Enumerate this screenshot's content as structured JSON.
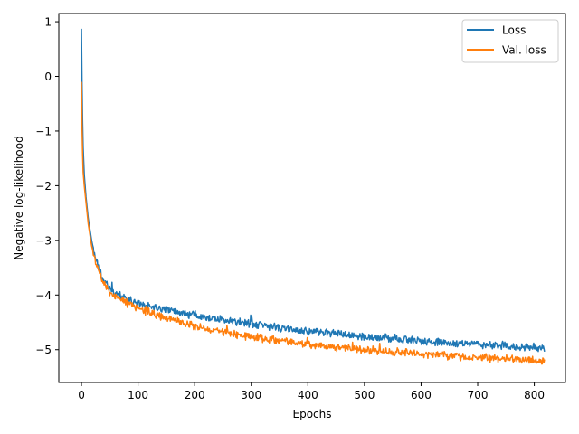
{
  "chart_data": {
    "type": "line",
    "xlabel": "Epochs",
    "ylabel": "Negative log-likelihood",
    "xlim": [
      -40,
      855
    ],
    "ylim": [
      -5.6,
      1.15
    ],
    "xticks": [
      0,
      100,
      200,
      300,
      400,
      500,
      600,
      700,
      800
    ],
    "xtick_labels": [
      "0",
      "100",
      "200",
      "300",
      "400",
      "500",
      "600",
      "700",
      "800"
    ],
    "yticks": [
      1,
      0,
      -1,
      -2,
      -3,
      -4,
      -5
    ],
    "ytick_labels": [
      "1",
      "0",
      "−1",
      "−2",
      "−3",
      "−4",
      "−5"
    ],
    "grid": false,
    "legend_position": "top-right",
    "n_epochs": 819,
    "series": [
      {
        "name": "Loss",
        "color": "#1f77b4",
        "noise": 0.06,
        "curve": [
          [
            0,
            0.87
          ],
          [
            1,
            -0.1
          ],
          [
            2,
            -0.8
          ],
          [
            3,
            -1.3
          ],
          [
            5,
            -1.8
          ],
          [
            8,
            -2.2
          ],
          [
            12,
            -2.6
          ],
          [
            18,
            -3.0
          ],
          [
            25,
            -3.35
          ],
          [
            35,
            -3.65
          ],
          [
            50,
            -3.9
          ],
          [
            75,
            -4.05
          ],
          [
            100,
            -4.15
          ],
          [
            150,
            -4.27
          ],
          [
            200,
            -4.37
          ],
          [
            250,
            -4.45
          ],
          [
            300,
            -4.53
          ],
          [
            350,
            -4.6
          ],
          [
            400,
            -4.66
          ],
          [
            450,
            -4.71
          ],
          [
            500,
            -4.76
          ],
          [
            550,
            -4.8
          ],
          [
            600,
            -4.84
          ],
          [
            650,
            -4.87
          ],
          [
            700,
            -4.9
          ],
          [
            750,
            -4.93
          ],
          [
            800,
            -4.96
          ],
          [
            818,
            -4.98
          ]
        ]
      },
      {
        "name": "Val. loss",
        "color": "#ff7f0e",
        "noise": 0.06,
        "curve": [
          [
            0,
            -0.1
          ],
          [
            1,
            -0.9
          ],
          [
            2,
            -1.4
          ],
          [
            3,
            -1.75
          ],
          [
            5,
            -2.0
          ],
          [
            8,
            -2.3
          ],
          [
            12,
            -2.7
          ],
          [
            18,
            -3.1
          ],
          [
            25,
            -3.4
          ],
          [
            35,
            -3.7
          ],
          [
            50,
            -3.95
          ],
          [
            75,
            -4.12
          ],
          [
            100,
            -4.25
          ],
          [
            150,
            -4.42
          ],
          [
            200,
            -4.57
          ],
          [
            250,
            -4.68
          ],
          [
            300,
            -4.77
          ],
          [
            350,
            -4.84
          ],
          [
            400,
            -4.9
          ],
          [
            450,
            -4.95
          ],
          [
            500,
            -5.0
          ],
          [
            550,
            -5.04
          ],
          [
            600,
            -5.08
          ],
          [
            650,
            -5.11
          ],
          [
            700,
            -5.14
          ],
          [
            750,
            -5.17
          ],
          [
            800,
            -5.2
          ],
          [
            818,
            -5.21
          ]
        ]
      }
    ]
  }
}
